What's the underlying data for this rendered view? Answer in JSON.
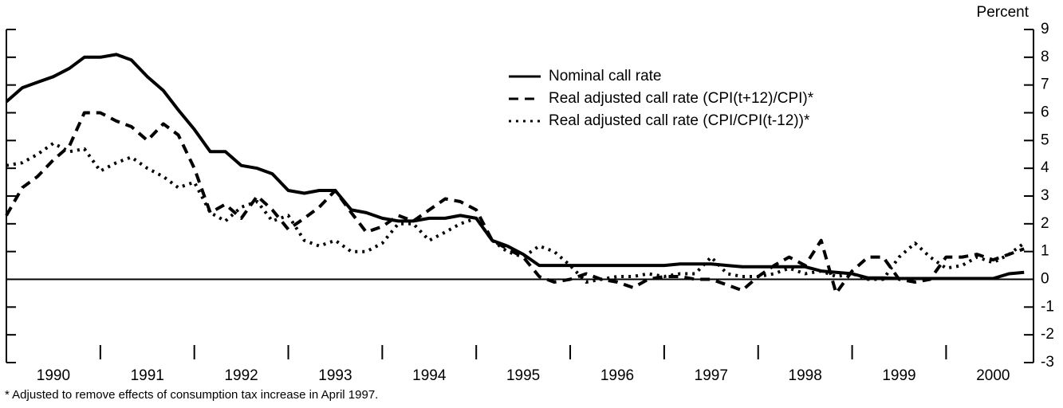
{
  "chart_data": {
    "type": "line",
    "y_axis_label": "Percent",
    "footnote": "* Adjusted to remove effects of consumption tax increase in April 1997.",
    "x": [
      1990,
      1990.17,
      1990.33,
      1990.5,
      1990.67,
      1990.83,
      1991,
      1991.17,
      1991.33,
      1991.5,
      1991.67,
      1991.83,
      1992,
      1992.17,
      1992.33,
      1992.5,
      1992.67,
      1992.83,
      1993,
      1993.17,
      1993.33,
      1993.5,
      1993.67,
      1993.83,
      1994,
      1994.17,
      1994.33,
      1994.5,
      1994.67,
      1994.83,
      1995,
      1995.17,
      1995.33,
      1995.5,
      1995.67,
      1995.83,
      1996,
      1996.17,
      1996.33,
      1996.5,
      1996.67,
      1996.83,
      1997,
      1997.17,
      1997.33,
      1997.5,
      1997.67,
      1997.83,
      1998,
      1998.17,
      1998.33,
      1998.5,
      1998.67,
      1998.83,
      1999,
      1999.17,
      1999.33,
      1999.5,
      1999.67,
      1999.83,
      2000,
      2000.17,
      2000.33,
      2000.5,
      2000.67,
      2000.83
    ],
    "series": [
      {
        "name": "Nominal call rate",
        "color": "#000000",
        "dash": "solid",
        "values": [
          6.4,
          6.9,
          7.1,
          7.3,
          7.6,
          8.0,
          8.0,
          8.1,
          7.9,
          7.3,
          6.8,
          6.1,
          5.4,
          4.6,
          4.6,
          4.1,
          4.0,
          3.8,
          3.2,
          3.1,
          3.2,
          3.2,
          2.5,
          2.4,
          2.2,
          2.1,
          2.1,
          2.2,
          2.2,
          2.3,
          2.2,
          1.4,
          1.2,
          0.9,
          0.5,
          0.5,
          0.5,
          0.5,
          0.5,
          0.5,
          0.5,
          0.5,
          0.5,
          0.55,
          0.55,
          0.55,
          0.5,
          0.45,
          0.45,
          0.45,
          0.45,
          0.45,
          0.3,
          0.25,
          0.2,
          0.05,
          0.05,
          0.03,
          0.03,
          0.03,
          0.03,
          0.03,
          0.03,
          0.03,
          0.2,
          0.25
        ]
      },
      {
        "name": "Real adjusted call rate (CPI(t+12)/CPI)*",
        "color": "#000000",
        "dash": "dashed",
        "values": [
          2.3,
          3.3,
          3.7,
          4.3,
          4.8,
          6.0,
          6.0,
          5.7,
          5.5,
          5.0,
          5.6,
          5.2,
          4.0,
          2.4,
          2.7,
          2.2,
          3.0,
          2.5,
          1.8,
          2.2,
          2.6,
          3.2,
          2.4,
          1.7,
          1.9,
          2.3,
          2.1,
          2.5,
          2.9,
          2.8,
          2.5,
          1.4,
          1.1,
          0.8,
          0.1,
          -0.1,
          0.0,
          0.2,
          0.0,
          -0.1,
          -0.3,
          0.0,
          0.1,
          0.1,
          0.0,
          0.0,
          -0.2,
          -0.4,
          0.1,
          0.5,
          0.8,
          0.5,
          1.4,
          -0.5,
          0.3,
          0.8,
          0.8,
          0.0,
          -0.1,
          0.0,
          0.8,
          0.8,
          0.9,
          0.7,
          0.9,
          1.1
        ]
      },
      {
        "name": "Real adjusted call rate (CPI/CPI(t-12))*",
        "color": "#000000",
        "dash": "dotted",
        "values": [
          4.1,
          4.2,
          4.5,
          4.9,
          4.6,
          4.7,
          3.9,
          4.2,
          4.4,
          4.0,
          3.7,
          3.3,
          3.5,
          2.4,
          2.1,
          2.6,
          2.8,
          2.1,
          2.3,
          1.4,
          1.2,
          1.4,
          1.0,
          1.0,
          1.3,
          2.0,
          2.0,
          1.4,
          1.7,
          2.0,
          2.2,
          1.4,
          1.0,
          0.8,
          1.2,
          1.0,
          0.5,
          -0.1,
          0.0,
          0.1,
          0.1,
          0.2,
          0.1,
          0.2,
          0.2,
          0.8,
          0.2,
          0.1,
          0.1,
          0.2,
          0.4,
          0.2,
          0.3,
          0.1,
          0.2,
          0.0,
          0.0,
          0.8,
          1.3,
          0.8,
          0.4,
          0.5,
          0.8,
          0.6,
          0.9,
          1.3
        ]
      }
    ],
    "xlim": [
      1990,
      2000.93
    ],
    "xticks": [
      {
        "value": 1990.5,
        "label": "1990"
      },
      {
        "value": 1991.5,
        "label": "1991"
      },
      {
        "value": 1992.5,
        "label": "1992"
      },
      {
        "value": 1993.5,
        "label": "1993"
      },
      {
        "value": 1994.5,
        "label": "1994"
      },
      {
        "value": 1995.5,
        "label": "1995"
      },
      {
        "value": 1996.5,
        "label": "1996"
      },
      {
        "value": 1997.5,
        "label": "1997"
      },
      {
        "value": 1998.5,
        "label": "1998"
      },
      {
        "value": 1999.5,
        "label": "1999"
      },
      {
        "value": 2000.5,
        "label": "2000"
      }
    ],
    "xtick_marks": [
      1991,
      1992,
      1993,
      1994,
      1995,
      1996,
      1997,
      1998,
      1999,
      2000
    ],
    "ylim": [
      -3,
      9
    ],
    "yticks": [
      -3,
      -2,
      -1,
      0,
      1,
      2,
      3,
      4,
      5,
      6,
      7,
      8,
      9
    ],
    "zero_line": true,
    "legend": "upper-center"
  }
}
